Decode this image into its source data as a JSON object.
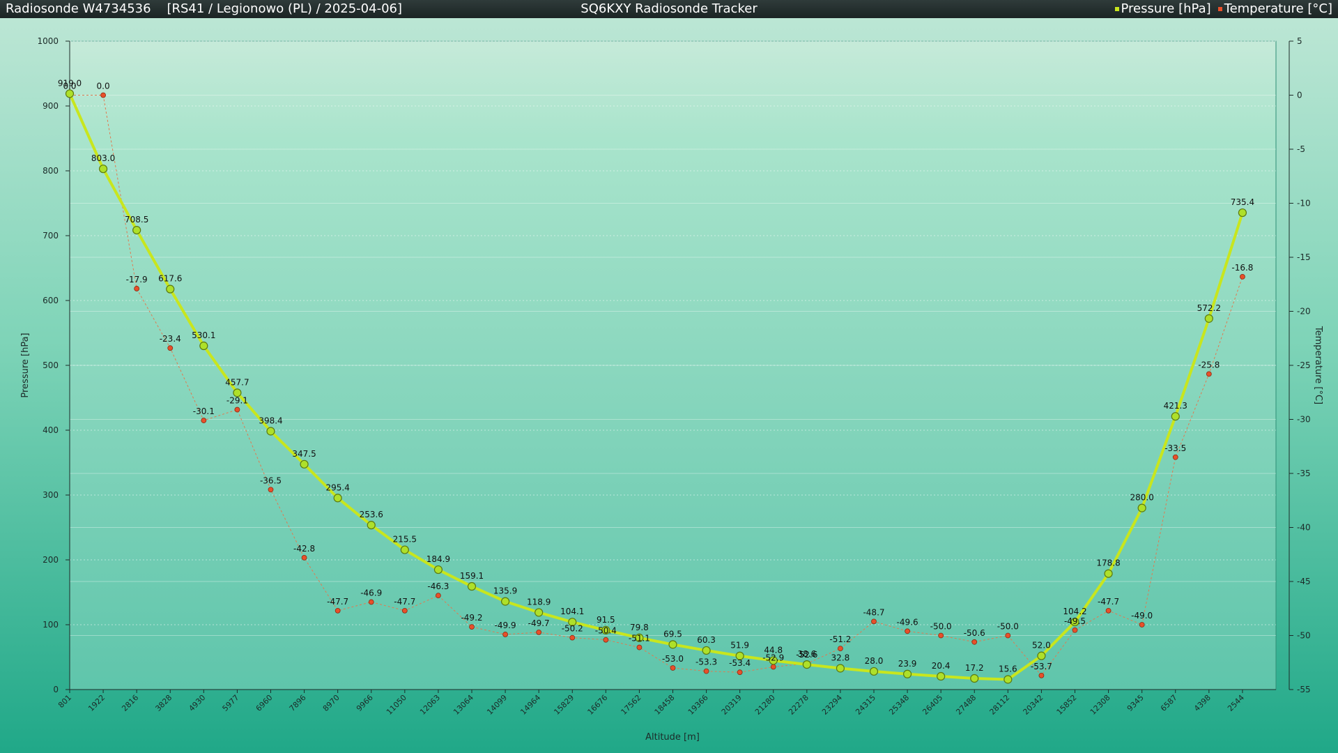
{
  "header": {
    "title_left": "Radiosonde W4734536",
    "subtitle_left": "[RS41 / Legionowo (PL) / 2025-04-06]",
    "title_center": "SQ6KXY Radiosonde Tracker"
  },
  "colors": {
    "pressure": "#c8e61e",
    "pressure_marker": "#aee02a",
    "temperature": "#e8502a",
    "temperature_line": "#e07a50"
  },
  "chart_data": {
    "type": "line",
    "xlabel": "Altitude [m]",
    "ylabel_left": "Pressure [hPa]",
    "ylabel_right": "Temperature [°C]",
    "ylim_left": [
      0,
      1000
    ],
    "ylim_right": [
      -55,
      5
    ],
    "y_ticks_left": [
      0,
      100,
      200,
      300,
      400,
      500,
      600,
      700,
      800,
      900,
      1000
    ],
    "y_ticks_right": [
      5,
      0,
      -5,
      -10,
      -15,
      -20,
      -25,
      -30,
      -35,
      -40,
      -45,
      -50,
      -55
    ],
    "grid": true,
    "legend_position": "top-right",
    "categories": [
      "801",
      "1922",
      "2816",
      "3828",
      "4930",
      "5977",
      "6960",
      "7896",
      "8970",
      "9966",
      "11050",
      "12063",
      "13064",
      "14099",
      "14964",
      "15829",
      "16676",
      "17562",
      "18458",
      "19366",
      "20319",
      "21280",
      "22278",
      "23294",
      "24315",
      "25348",
      "26405",
      "27488",
      "28112",
      "20342",
      "15852",
      "12308",
      "9345",
      "6587",
      "4398",
      "2544"
    ],
    "series": [
      {
        "name": "Pressure [hPa]",
        "axis": "left",
        "values": [
          919.0,
          803.0,
          708.5,
          617.6,
          530.1,
          457.7,
          398.4,
          347.5,
          295.4,
          253.6,
          215.5,
          184.9,
          159.1,
          135.9,
          118.9,
          104.1,
          91.5,
          79.8,
          69.5,
          60.3,
          51.9,
          44.8,
          38.6,
          32.8,
          28.0,
          23.9,
          20.4,
          17.2,
          15.6,
          52.0,
          104.2,
          178.8,
          280.0,
          421.3,
          572.2,
          735.4
        ]
      },
      {
        "name": "Temperature [°C]",
        "axis": "right",
        "values": [
          0.0,
          0.0,
          -17.9,
          -23.4,
          -30.1,
          -29.1,
          -36.5,
          -42.8,
          -47.7,
          -46.9,
          -47.7,
          -46.3,
          -49.2,
          -49.9,
          -49.7,
          -50.2,
          -50.4,
          -51.1,
          -53.0,
          -53.3,
          -53.4,
          -52.9,
          -52.6,
          -51.2,
          -48.7,
          -49.6,
          -50.0,
          -50.6,
          -50.0,
          -53.7,
          -49.5,
          -47.7,
          -49.0,
          -33.5,
          -25.8,
          -16.8
        ]
      }
    ]
  }
}
